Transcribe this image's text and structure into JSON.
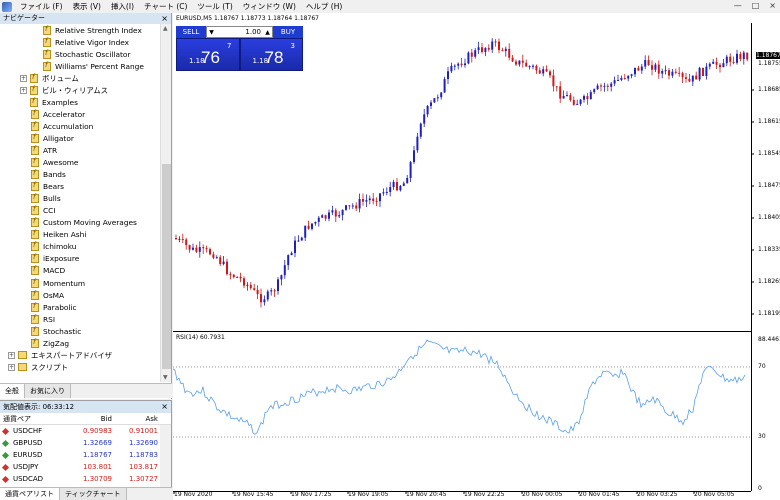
{
  "menu": [
    "ファイル (F)",
    "表示 (V)",
    "挿入(I)",
    "チャート (C)",
    "ツール (T)",
    "ウィンドウ (W)",
    "ヘルプ (H)"
  ],
  "window_controls": [
    "—",
    "□",
    "×"
  ],
  "navigator": {
    "title": "ナビゲーター",
    "close": "×",
    "items": [
      {
        "label": "Relative Strength Index",
        "type": "indicator",
        "level": 2
      },
      {
        "label": "Relative Vigor Index",
        "type": "indicator",
        "level": 2
      },
      {
        "label": "Stochastic Oscillator",
        "type": "indicator",
        "level": 2
      },
      {
        "label": "Williams' Percent Range",
        "type": "indicator",
        "level": 2
      },
      {
        "label": "ボリューム",
        "type": "folder",
        "level": 1
      },
      {
        "label": "ビル・ウィリアムス",
        "type": "folder",
        "level": 1
      },
      {
        "label": "Examples",
        "type": "folder",
        "level": 1
      },
      {
        "label": "Accelerator",
        "type": "indicator",
        "level": 1
      },
      {
        "label": "Accumulation",
        "type": "indicator",
        "level": 1
      },
      {
        "label": "Alligator",
        "type": "indicator",
        "level": 1
      },
      {
        "label": "ATR",
        "type": "indicator",
        "level": 1
      },
      {
        "label": "Awesome",
        "type": "indicator",
        "level": 1
      },
      {
        "label": "Bands",
        "type": "indicator",
        "level": 1
      },
      {
        "label": "Bears",
        "type": "indicator",
        "level": 1
      },
      {
        "label": "Bulls",
        "type": "indicator",
        "level": 1
      },
      {
        "label": "CCI",
        "type": "indicator",
        "level": 1
      },
      {
        "label": "Custom Moving Averages",
        "type": "indicator",
        "level": 1
      },
      {
        "label": "Heiken Ashi",
        "type": "indicator",
        "level": 1
      },
      {
        "label": "Ichimoku",
        "type": "indicator",
        "level": 1
      },
      {
        "label": "iExposure",
        "type": "indicator",
        "level": 1
      },
      {
        "label": "MACD",
        "type": "indicator",
        "level": 1
      },
      {
        "label": "Momentum",
        "type": "indicator",
        "level": 1
      },
      {
        "label": "OsMA",
        "type": "indicator",
        "level": 1
      },
      {
        "label": "Parabolic",
        "type": "indicator",
        "level": 1
      },
      {
        "label": "RSI",
        "type": "indicator",
        "level": 1
      },
      {
        "label": "Stochastic",
        "type": "indicator",
        "level": 1
      },
      {
        "label": "ZigZag",
        "type": "indicator",
        "level": 1
      },
      {
        "label": "エキスパートアドバイザ",
        "type": "root",
        "level": 0
      },
      {
        "label": "スクリプト",
        "type": "root",
        "level": 0
      }
    ],
    "tabs": [
      "全般",
      "お気に入り"
    ]
  },
  "market_watch": {
    "title": "気配値表示: 06:33:12",
    "close": "×",
    "columns": [
      "通貨ペア",
      "Bid",
      "Ask"
    ],
    "rows": [
      {
        "symbol": "USDCHF",
        "bid": "0.90983",
        "ask": "0.91001",
        "dir": "down"
      },
      {
        "symbol": "GBPUSD",
        "bid": "1.32669",
        "ask": "1.32690",
        "dir": "up"
      },
      {
        "symbol": "EURUSD",
        "bid": "1.18767",
        "ask": "1.18783",
        "dir": "up"
      },
      {
        "symbol": "USDJPY",
        "bid": "103.801",
        "ask": "103.817",
        "dir": "down"
      },
      {
        "symbol": "USDCAD",
        "bid": "1.30709",
        "ask": "1.30727",
        "dir": "down"
      }
    ],
    "tabs": [
      "通貨ペアリスト",
      "ティックチャート"
    ]
  },
  "chart": {
    "header": "EURUSD,M5  1.18767 1.18773 1.18764 1.18767",
    "trade": {
      "sell_label": "SELL",
      "buy_label": "BUY",
      "lot": "1.00",
      "sell_prefix": "1.18",
      "sell_big": "76",
      "sell_sup": "7",
      "buy_prefix": "1.18",
      "buy_big": "78",
      "buy_sup": "3"
    },
    "price_axis": [
      "1.18755",
      "1.18685",
      "1.18615",
      "1.18545",
      "1.18475",
      "1.18405",
      "1.18335",
      "1.18265",
      "1.18195"
    ],
    "current_price": "1.18767",
    "rsi_label": "RSI(14) 60.7931",
    "rsi_axis": [
      "88.4461",
      "70",
      "30",
      "0"
    ],
    "time_axis": [
      "19 Nov 2020",
      "19 Nov 15:45",
      "19 Nov 17:25",
      "19 Nov 19:05",
      "19 Nov 20:45",
      "19 Nov 22:25",
      "20 Nov 00:05",
      "20 Nov 01:45",
      "20 Nov 03:25",
      "20 Nov 05:05"
    ],
    "colors": {
      "up": "#2020c0",
      "down": "#d01818",
      "rsi": "#5aa0e8"
    }
  }
}
